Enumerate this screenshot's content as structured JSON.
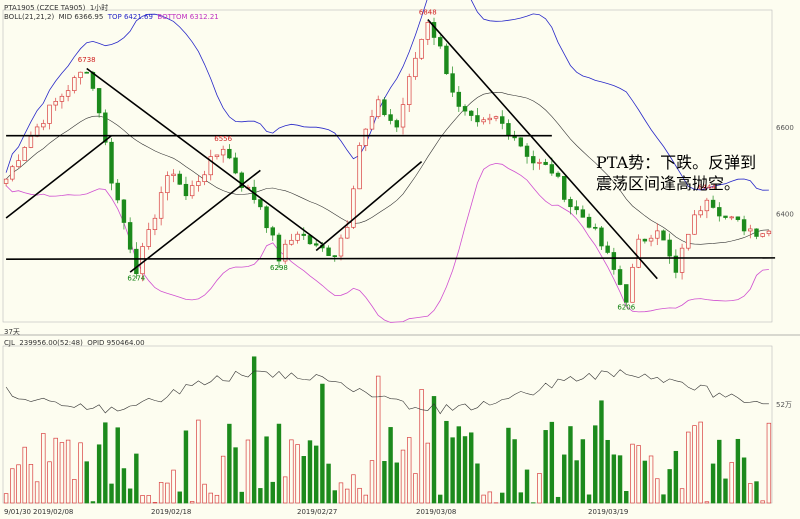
{
  "header": {
    "title": "PTA1905 (CZCE TA905)",
    "period": "1小时",
    "boll_label": "BOLL(21,21,2)",
    "mid_label": "MID 6366.95",
    "top_label": "TOP 6421.69",
    "bottom_label": "BOTTOM 6312.21",
    "days_label": "37天",
    "cjl_label": "CJL",
    "cjl_value": "239956.00(52:48)",
    "opid_label": "OPID 950464.00"
  },
  "annotation": {
    "line1": "PTA势：下跌。反弹到",
    "line2": "震荡区间逢高抛空。"
  },
  "colors": {
    "background": "#fdfdf0",
    "up": "#d84040",
    "down": "#1c8a1c",
    "boll_band": "#2828c8",
    "boll_bottom": "#d050d0",
    "mid": "#333333",
    "trendline": "#000000"
  },
  "chart_data": {
    "type": "candlestick",
    "price_axis": {
      "ticks": [
        6400,
        6600
      ],
      "ylim": [
        6150,
        6870
      ]
    },
    "volume_axis": {
      "ticks": [
        "52万"
      ],
      "tick_values": [
        52
      ]
    },
    "x_ticks": [
      "9/01/30",
      "2019/02/08",
      "2019/02/18",
      "2019/02/27",
      "2019/03/08",
      "2019/03/19"
    ],
    "price_labels": [
      {
        "text": "6738",
        "color": "red",
        "bar": 13
      },
      {
        "text": "6274",
        "color": "green",
        "bar": 21
      },
      {
        "text": "6556",
        "color": "red",
        "bar": 35
      },
      {
        "text": "6298",
        "color": "green",
        "bar": 44
      },
      {
        "text": "6848",
        "color": "red",
        "bar": 68
      },
      {
        "text": "6206",
        "color": "green",
        "bar": 100
      },
      {
        "text": "6444",
        "color": "red",
        "bar": 113
      }
    ],
    "anchors": [
      [
        0,
        6480
      ],
      [
        3,
        6560
      ],
      [
        7,
        6640
      ],
      [
        10,
        6690
      ],
      [
        13,
        6738
      ],
      [
        15,
        6640
      ],
      [
        17,
        6480
      ],
      [
        19,
        6380
      ],
      [
        21,
        6274
      ],
      [
        23,
        6350
      ],
      [
        25,
        6450
      ],
      [
        27,
        6500
      ],
      [
        29,
        6440
      ],
      [
        31,
        6480
      ],
      [
        35,
        6556
      ],
      [
        38,
        6470
      ],
      [
        41,
        6420
      ],
      [
        44,
        6298
      ],
      [
        47,
        6360
      ],
      [
        50,
        6320
      ],
      [
        53,
        6310
      ],
      [
        55,
        6380
      ],
      [
        57,
        6560
      ],
      [
        60,
        6650
      ],
      [
        63,
        6600
      ],
      [
        66,
        6760
      ],
      [
        68,
        6848
      ],
      [
        70,
        6780
      ],
      [
        73,
        6640
      ],
      [
        76,
        6600
      ],
      [
        79,
        6620
      ],
      [
        82,
        6580
      ],
      [
        85,
        6520
      ],
      [
        88,
        6500
      ],
      [
        91,
        6420
      ],
      [
        94,
        6380
      ],
      [
        97,
        6300
      ],
      [
        100,
        6206
      ],
      [
        102,
        6330
      ],
      [
        105,
        6370
      ],
      [
        108,
        6260
      ],
      [
        110,
        6360
      ],
      [
        113,
        6444
      ],
      [
        116,
        6390
      ],
      [
        119,
        6370
      ],
      [
        121,
        6360
      ]
    ],
    "trendlines": [
      {
        "from": [
          0,
          6390
        ],
        "to": [
          17,
          6580
        ]
      },
      {
        "from": [
          13,
          6735
        ],
        "to": [
          51,
          6330
        ]
      },
      {
        "from": [
          20,
          6265
        ],
        "to": [
          41,
          6500
        ]
      },
      {
        "from": [
          0,
          6580
        ],
        "to": [
          88,
          6580
        ]
      },
      {
        "from": [
          0,
          6295
        ],
        "to": [
          124,
          6298
        ]
      },
      {
        "from": [
          50,
          6315
        ],
        "to": [
          67,
          6520
        ]
      },
      {
        "from": [
          68,
          6848
        ],
        "to": [
          105,
          6250
        ]
      }
    ],
    "volume_range": [
      8,
      75
    ]
  }
}
